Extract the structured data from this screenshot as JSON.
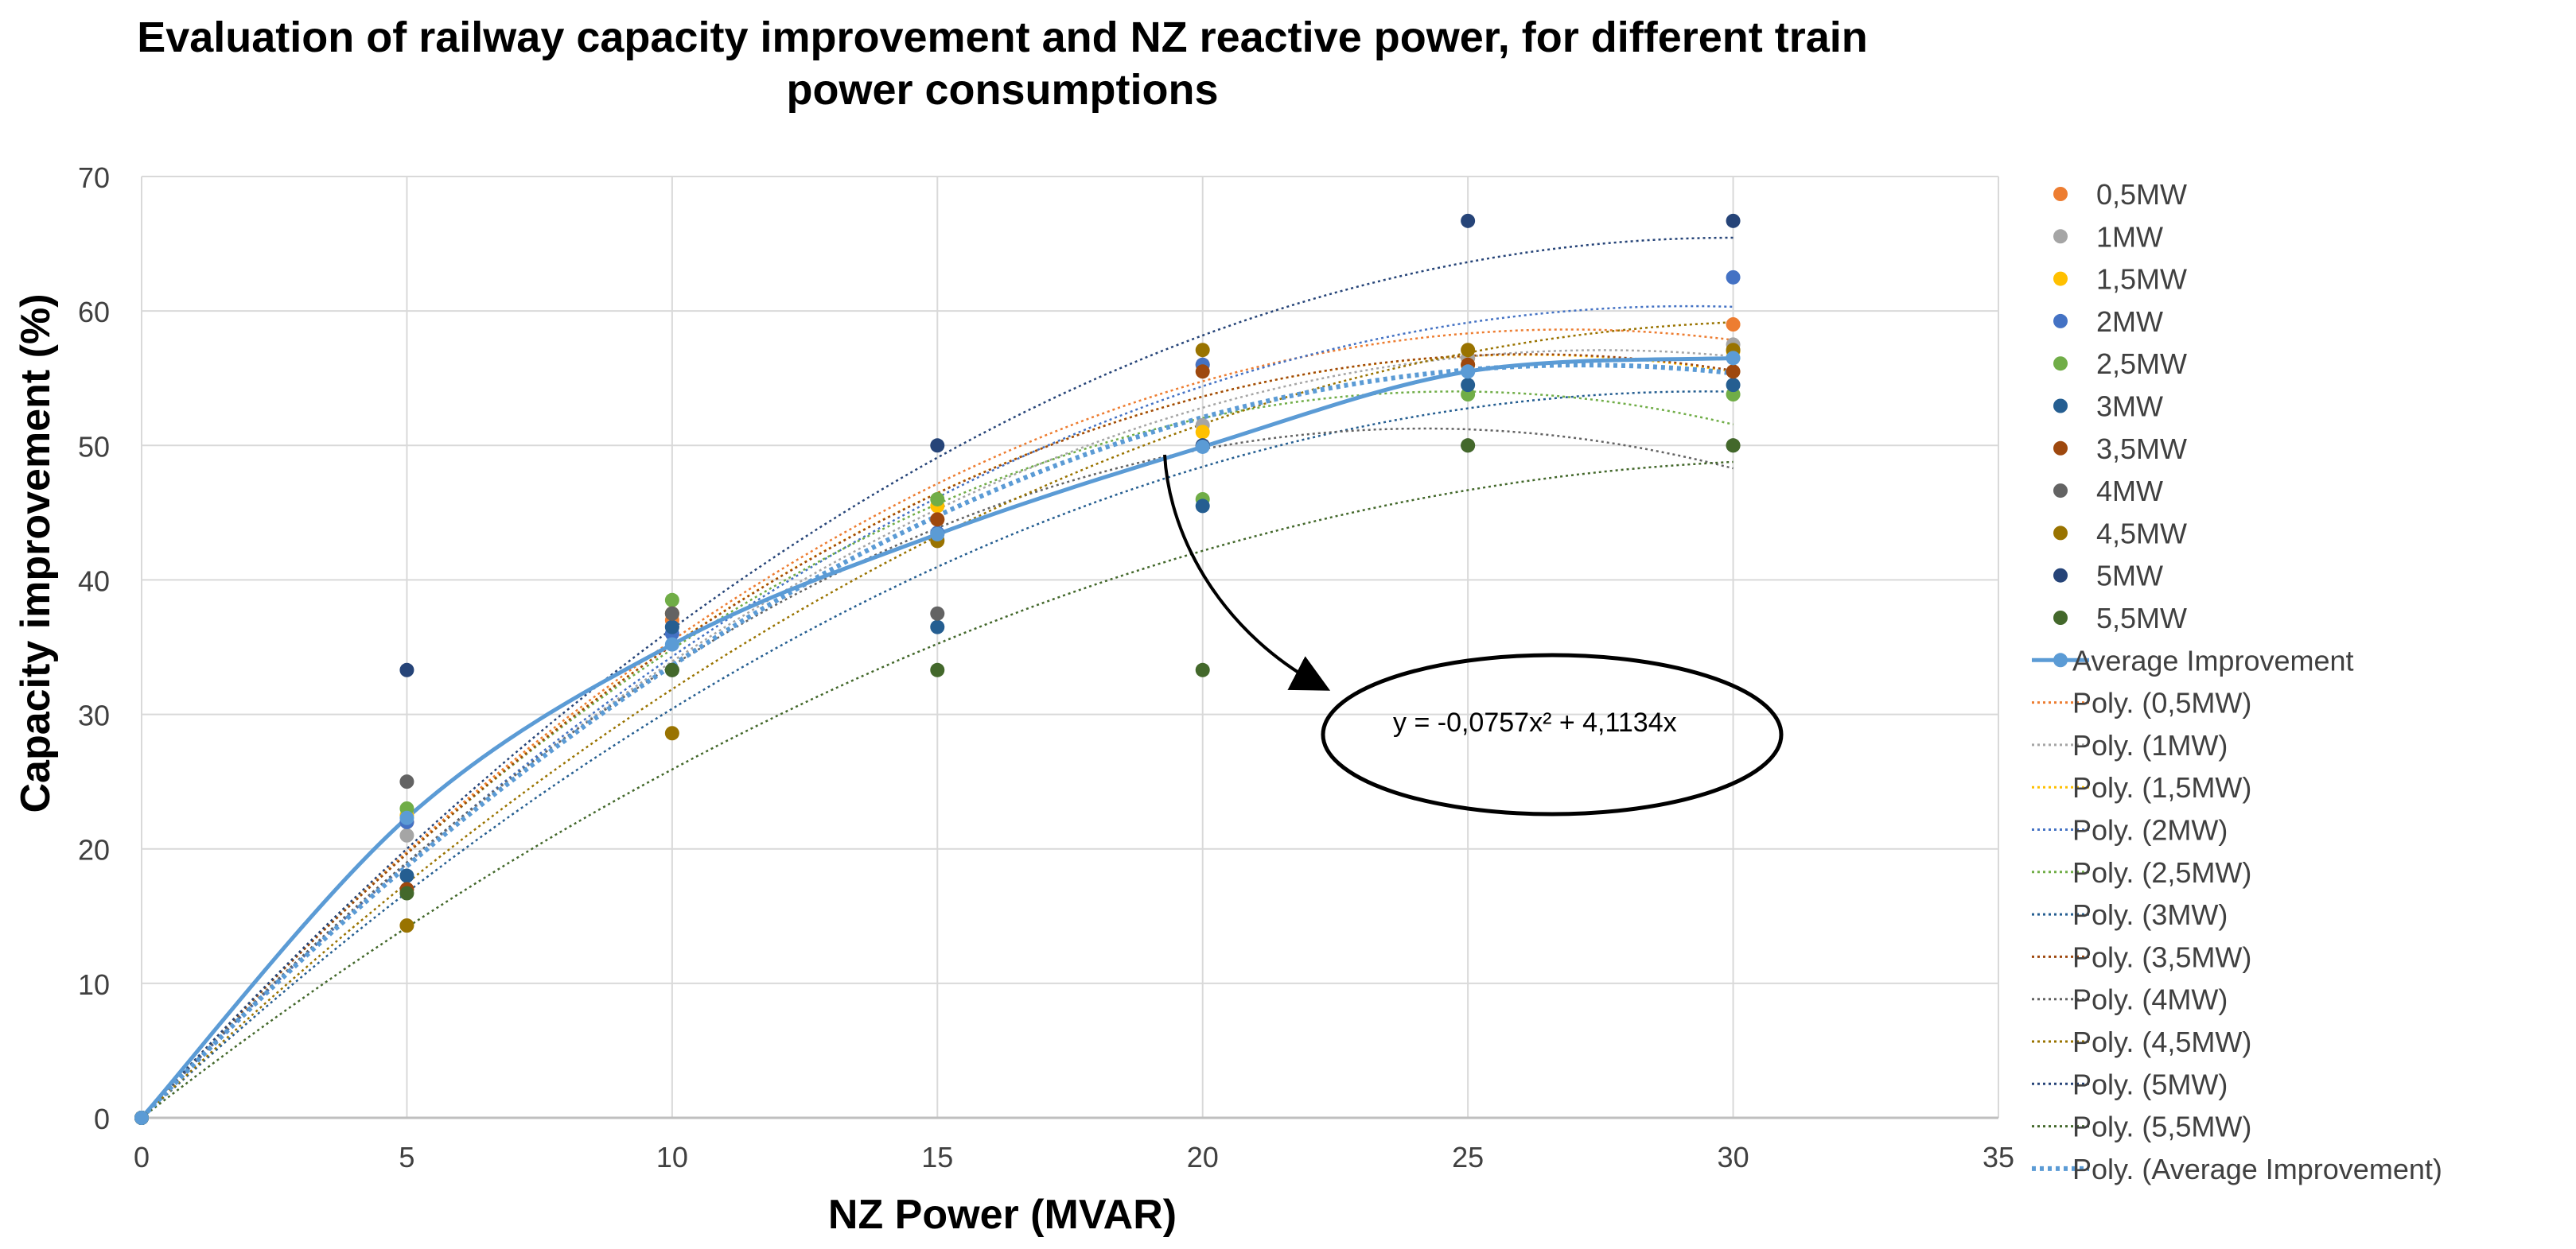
{
  "chart_data": {
    "type": "scatter",
    "title": [
      "Evaluation of railway capacity improvement and NZ reactive power, for different train",
      "power consumptions"
    ],
    "xlabel": "NZ Power (MVAR)",
    "ylabel": "Capacity improvement (%)",
    "xlim": [
      0,
      35
    ],
    "ylim": [
      0,
      70
    ],
    "xticks": [
      "0",
      "5",
      "10",
      "15",
      "20",
      "25",
      "30",
      "35"
    ],
    "yticks": [
      "0",
      "10",
      "20",
      "30",
      "40",
      "50",
      "60",
      "70"
    ],
    "grid": true,
    "legend_position": "right",
    "x": [
      0,
      5,
      10,
      15,
      20,
      25,
      30
    ],
    "series": [
      {
        "name": "0,5MW",
        "color": "#ED7D31",
        "values": [
          0,
          22.0,
          37.0,
          44.5,
          56.0,
          56.5,
          59.0
        ],
        "trend_label": "Poly. (0,5MW)"
      },
      {
        "name": "1MW",
        "color": "#A5A5A5",
        "values": [
          0,
          21.0,
          36.5,
          43.0,
          51.5,
          56.5,
          57.5
        ],
        "trend_label": "Poly. (1MW)"
      },
      {
        "name": "1,5MW",
        "color": "#FFC000",
        "values": [
          0,
          22.5,
          37.5,
          45.5,
          51.0,
          56.0,
          57.0
        ],
        "trend_label": "Poly. (1,5MW)"
      },
      {
        "name": "2MW",
        "color": "#4472C4",
        "values": [
          0,
          22.0,
          36.0,
          43.5,
          56.0,
          55.5,
          62.5
        ],
        "trend_label": "Poly. (2MW)"
      },
      {
        "name": "2,5MW",
        "color": "#70AD47",
        "values": [
          0,
          23.0,
          38.5,
          46.0,
          46.0,
          53.8,
          53.8
        ],
        "trend_label": "Poly. (2,5MW)"
      },
      {
        "name": "3MW",
        "color": "#255E91",
        "values": [
          0,
          18.0,
          36.5,
          36.5,
          45.5,
          54.5,
          54.5
        ],
        "trend_label": "Poly. (3MW)"
      },
      {
        "name": "3,5MW",
        "color": "#9E480E",
        "values": [
          0,
          17.0,
          37.5,
          44.5,
          55.5,
          56.0,
          55.5
        ],
        "trend_label": "Poly. (3,5MW)"
      },
      {
        "name": "4MW",
        "color": "#636363",
        "values": [
          0,
          25.0,
          37.5,
          37.5,
          50.0,
          50.0,
          50.0
        ],
        "trend_label": "Poly. (4MW)"
      },
      {
        "name": "4,5MW",
        "color": "#997300",
        "values": [
          0,
          14.3,
          28.6,
          42.9,
          57.1,
          57.1,
          57.1
        ],
        "trend_label": "Poly. (4,5MW)"
      },
      {
        "name": "5MW",
        "color": "#264478",
        "values": [
          0,
          33.3,
          33.3,
          50.0,
          50.0,
          66.7,
          66.7
        ],
        "trend_label": "Poly. (5MW)"
      },
      {
        "name": "5,5MW",
        "color": "#43682B",
        "values": [
          0,
          16.7,
          33.3,
          33.3,
          33.3,
          50.0,
          50.0
        ],
        "trend_label": "Poly. (5,5MW)"
      }
    ],
    "average": {
      "name": "Average Improvement",
      "color": "#5B9BD5",
      "values": [
        0,
        22.3,
        35.2,
        43.4,
        49.9,
        55.5,
        56.5
      ],
      "trend_label": "Poly. (Average Improvement)"
    },
    "annotation": {
      "text": "y = -0,0757x² + 4,1134x",
      "points_to": {
        "x": 19.2,
        "y": 49.5
      }
    }
  }
}
